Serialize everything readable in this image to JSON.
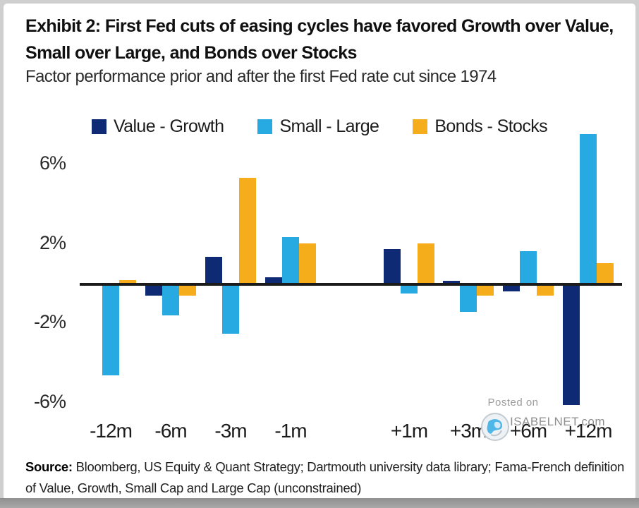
{
  "header": {
    "title": "Exhibit 2: First Fed cuts of easing cycles have favored Growth over Value, Small over Large, and Bonds over Stocks",
    "subtitle": "Factor performance prior and after the first Fed rate cut since 1974"
  },
  "chart_data": {
    "type": "bar",
    "title": "Exhibit 2: First Fed cuts of easing cycles have favored Growth over Value, Small over Large, and Bonds over Stocks",
    "subtitle": "Factor performance prior and after the first Fed rate cut since 1974",
    "categories": [
      "-12m",
      "-6m",
      "-3m",
      "-1m",
      "+1m",
      "+3m",
      "+6m",
      "+12m"
    ],
    "series": [
      {
        "name": "Value - Growth",
        "color": "#0F2A74",
        "values": [
          0.0,
          -0.5,
          1.3,
          0.3,
          1.7,
          0.1,
          -0.3,
          -6.0
        ]
      },
      {
        "name": "Small - Large",
        "color": "#27A9E1",
        "values": [
          -4.5,
          -1.5,
          -2.4,
          2.3,
          -0.4,
          -1.3,
          1.6,
          7.5
        ]
      },
      {
        "name": "Bonds - Stocks",
        "color": "#F5AD1B",
        "values": [
          0.15,
          -0.5,
          5.3,
          2.0,
          2.0,
          -0.5,
          -0.5,
          1.0
        ]
      }
    ],
    "y_ticks": [
      "6%",
      "2%",
      "-2%",
      "-6%"
    ],
    "y_tick_values": [
      6,
      2,
      -2,
      -6
    ],
    "ylim": [
      -7.2,
      8.2
    ],
    "xlabel": "",
    "ylabel": "",
    "grid": false,
    "legend_position": "top",
    "zero_axis_color": "#1b1b1b"
  },
  "watermark": {
    "line1": "Posted on",
    "line2": "ISABELNET.com",
    "icon": "globe-icon"
  },
  "source": {
    "label": "Source:",
    "text": " Bloomberg, US Equity & Quant Strategy; Dartmouth university data library; Fama-French definition of Value, Growth, Small Cap and Large Cap (unconstrained)"
  }
}
